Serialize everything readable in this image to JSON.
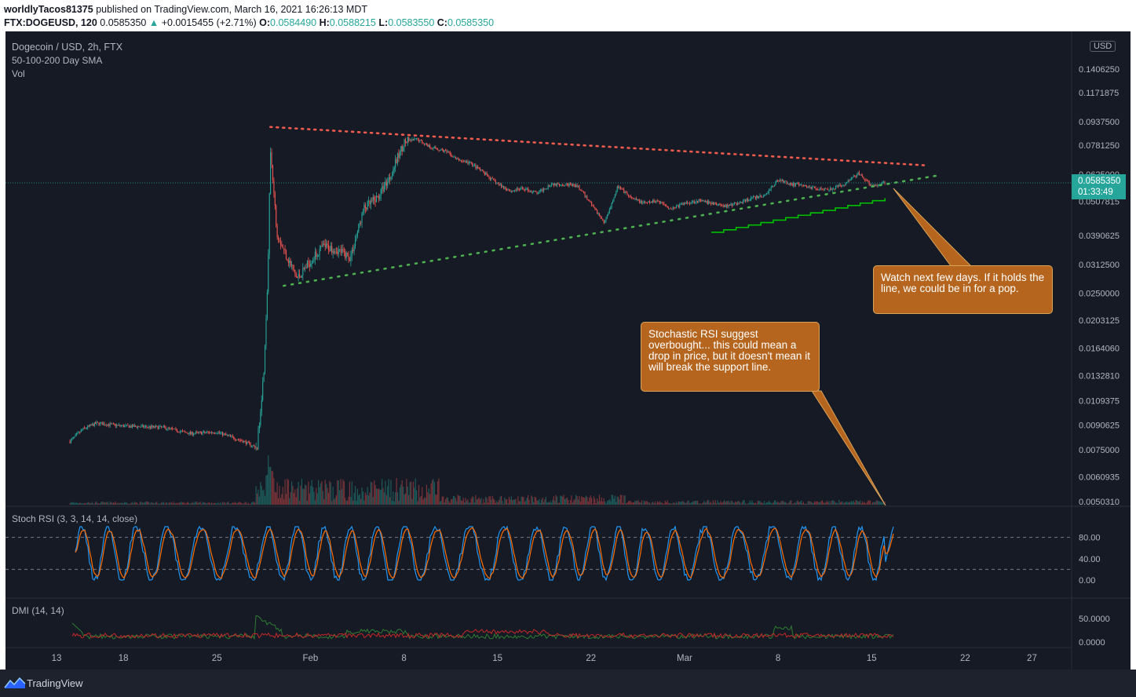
{
  "header": {
    "author": "worldlyTacos81375",
    "published": " published on TradingView.com, March 16, 2021 16:26:13 MDT",
    "symbol": "FTX:DOGEUSD, 120",
    "last": "0.0585350",
    "arrow": "▲",
    "change": "+0.0015455 (+2.71%)",
    "o_label": "O:",
    "o": "0.0584490",
    "h_label": "H:",
    "h": "0.0588215",
    "l_label": "L:",
    "l": "0.0583550",
    "c_label": "C:",
    "c": "0.0585350"
  },
  "legend": {
    "title": "Dogecoin / USD, 2h, FTX",
    "sma": "50-100-200 Day SMA",
    "vol": "Vol"
  },
  "price_tag": {
    "value": "0.0585350",
    "countdown": "01:33:49"
  },
  "currency_button": "USD",
  "notes": {
    "note1": "Watch next few days.  If it holds the line, we could be in for a pop.",
    "note2": "Stochastic RSI suggest overbought... this could mean a drop in price, but it doesn't mean it will break the support line."
  },
  "stoch_title": "Stoch RSI (3, 3, 14, 14, close)",
  "dmi_title": "DMI (14, 14)",
  "footer": {
    "brand": "TradingView"
  },
  "colors": {
    "bg": "#161a25",
    "up": "#26a69a",
    "down": "#ef5350",
    "resistance": "#f15b4e",
    "support": "#4caf50",
    "step_line": "#00c000",
    "k_line": "#2196f3",
    "d_line": "#ff6d00",
    "note_bg": "#b5651d"
  },
  "chart_data": {
    "type": "candlestick",
    "x_ticks": [
      "13",
      "18",
      "25",
      "Feb",
      "8",
      "15",
      "22",
      "Mar",
      "8",
      "15",
      "22",
      "27"
    ],
    "price_scale": "log",
    "y_ticks": [
      "0.1406250",
      "0.1171875",
      "0.0937500",
      "0.0781250",
      "0.0625000",
      "0.0507815",
      "0.0390625",
      "0.0312500",
      "0.0250000",
      "0.0203125",
      "0.0164060",
      "0.0132810",
      "0.0109375",
      "0.0090625",
      "0.0075000",
      "0.0060935",
      "0.0050310"
    ],
    "price_path": [
      [
        "Jan 14",
        0.008
      ],
      [
        "Jan 15",
        0.0088
      ],
      [
        "Jan 16",
        0.0092
      ],
      [
        "Jan 18",
        0.009
      ],
      [
        "Jan 21",
        0.0089
      ],
      [
        "Jan 23",
        0.0085
      ],
      [
        "Jan 25",
        0.0086
      ],
      [
        "Jan 27",
        0.008
      ],
      [
        "Jan 28",
        0.0076
      ],
      [
        "Jan 28 12h",
        0.0135
      ],
      [
        "Jan 28 20h",
        0.03
      ],
      [
        "Jan 29",
        0.075
      ],
      [
        "Jan 29 12h",
        0.04
      ],
      [
        "Jan 30",
        0.035
      ],
      [
        "Jan 31",
        0.028
      ],
      [
        "Feb 1",
        0.032
      ],
      [
        "Feb 2",
        0.036
      ],
      [
        "Feb 3",
        0.035
      ],
      [
        "Feb 4",
        0.033
      ],
      [
        "Feb 5",
        0.048
      ],
      [
        "Feb 6",
        0.052
      ],
      [
        "Feb 7",
        0.062
      ],
      [
        "Feb 8",
        0.08
      ],
      [
        "Feb 9",
        0.082
      ],
      [
        "Feb 10",
        0.077
      ],
      [
        "Feb 11",
        0.075
      ],
      [
        "Feb 12",
        0.07
      ],
      [
        "Feb 13",
        0.068
      ],
      [
        "Feb 14",
        0.063
      ],
      [
        "Feb 15",
        0.058
      ],
      [
        "Feb 16",
        0.055
      ],
      [
        "Feb 17",
        0.056
      ],
      [
        "Feb 18",
        0.054
      ],
      [
        "Feb 19",
        0.058
      ],
      [
        "Feb 20",
        0.058
      ],
      [
        "Feb 21",
        0.057
      ],
      [
        "Feb 22",
        0.05
      ],
      [
        "Feb 23",
        0.043
      ],
      [
        "Feb 24",
        0.057
      ],
      [
        "Feb 25",
        0.052
      ],
      [
        "Feb 26",
        0.05
      ],
      [
        "Feb 27",
        0.051
      ],
      [
        "Feb 28",
        0.048
      ],
      [
        "Mar 1",
        0.05
      ],
      [
        "Mar 2",
        0.051
      ],
      [
        "Mar 3",
        0.05
      ],
      [
        "Mar 4",
        0.049
      ],
      [
        "Mar 5",
        0.05
      ],
      [
        "Mar 6",
        0.052
      ],
      [
        "Mar 7",
        0.053
      ],
      [
        "Mar 8",
        0.06
      ],
      [
        "Mar 9",
        0.058
      ],
      [
        "Mar 10",
        0.057
      ],
      [
        "Mar 11",
        0.056
      ],
      [
        "Mar 12",
        0.056
      ],
      [
        "Mar 13",
        0.058
      ],
      [
        "Mar 14",
        0.063
      ],
      [
        "Mar 15",
        0.057
      ],
      [
        "Mar 16",
        0.0585
      ]
    ],
    "trendlines": [
      {
        "kind": "resistance",
        "from": [
          "Jan 29",
          0.09
        ],
        "to": [
          "Mar 19",
          0.067
        ]
      },
      {
        "kind": "support",
        "from": [
          "Jan 30",
          0.0265
        ],
        "to": [
          "Mar 20",
          0.062
        ]
      },
      {
        "kind": "support-steps",
        "from": [
          "Mar 3",
          0.04
        ],
        "to": [
          "Mar 16",
          0.052
        ]
      }
    ],
    "stoch_rsi": {
      "y_ticks": [
        "80.00",
        "40.00",
        "0.00"
      ],
      "bands": [
        80,
        20
      ],
      "last_k": 100,
      "last_d": 92
    },
    "dmi": {
      "y_ticks": [
        "50.0000",
        "0.0000"
      ]
    }
  }
}
